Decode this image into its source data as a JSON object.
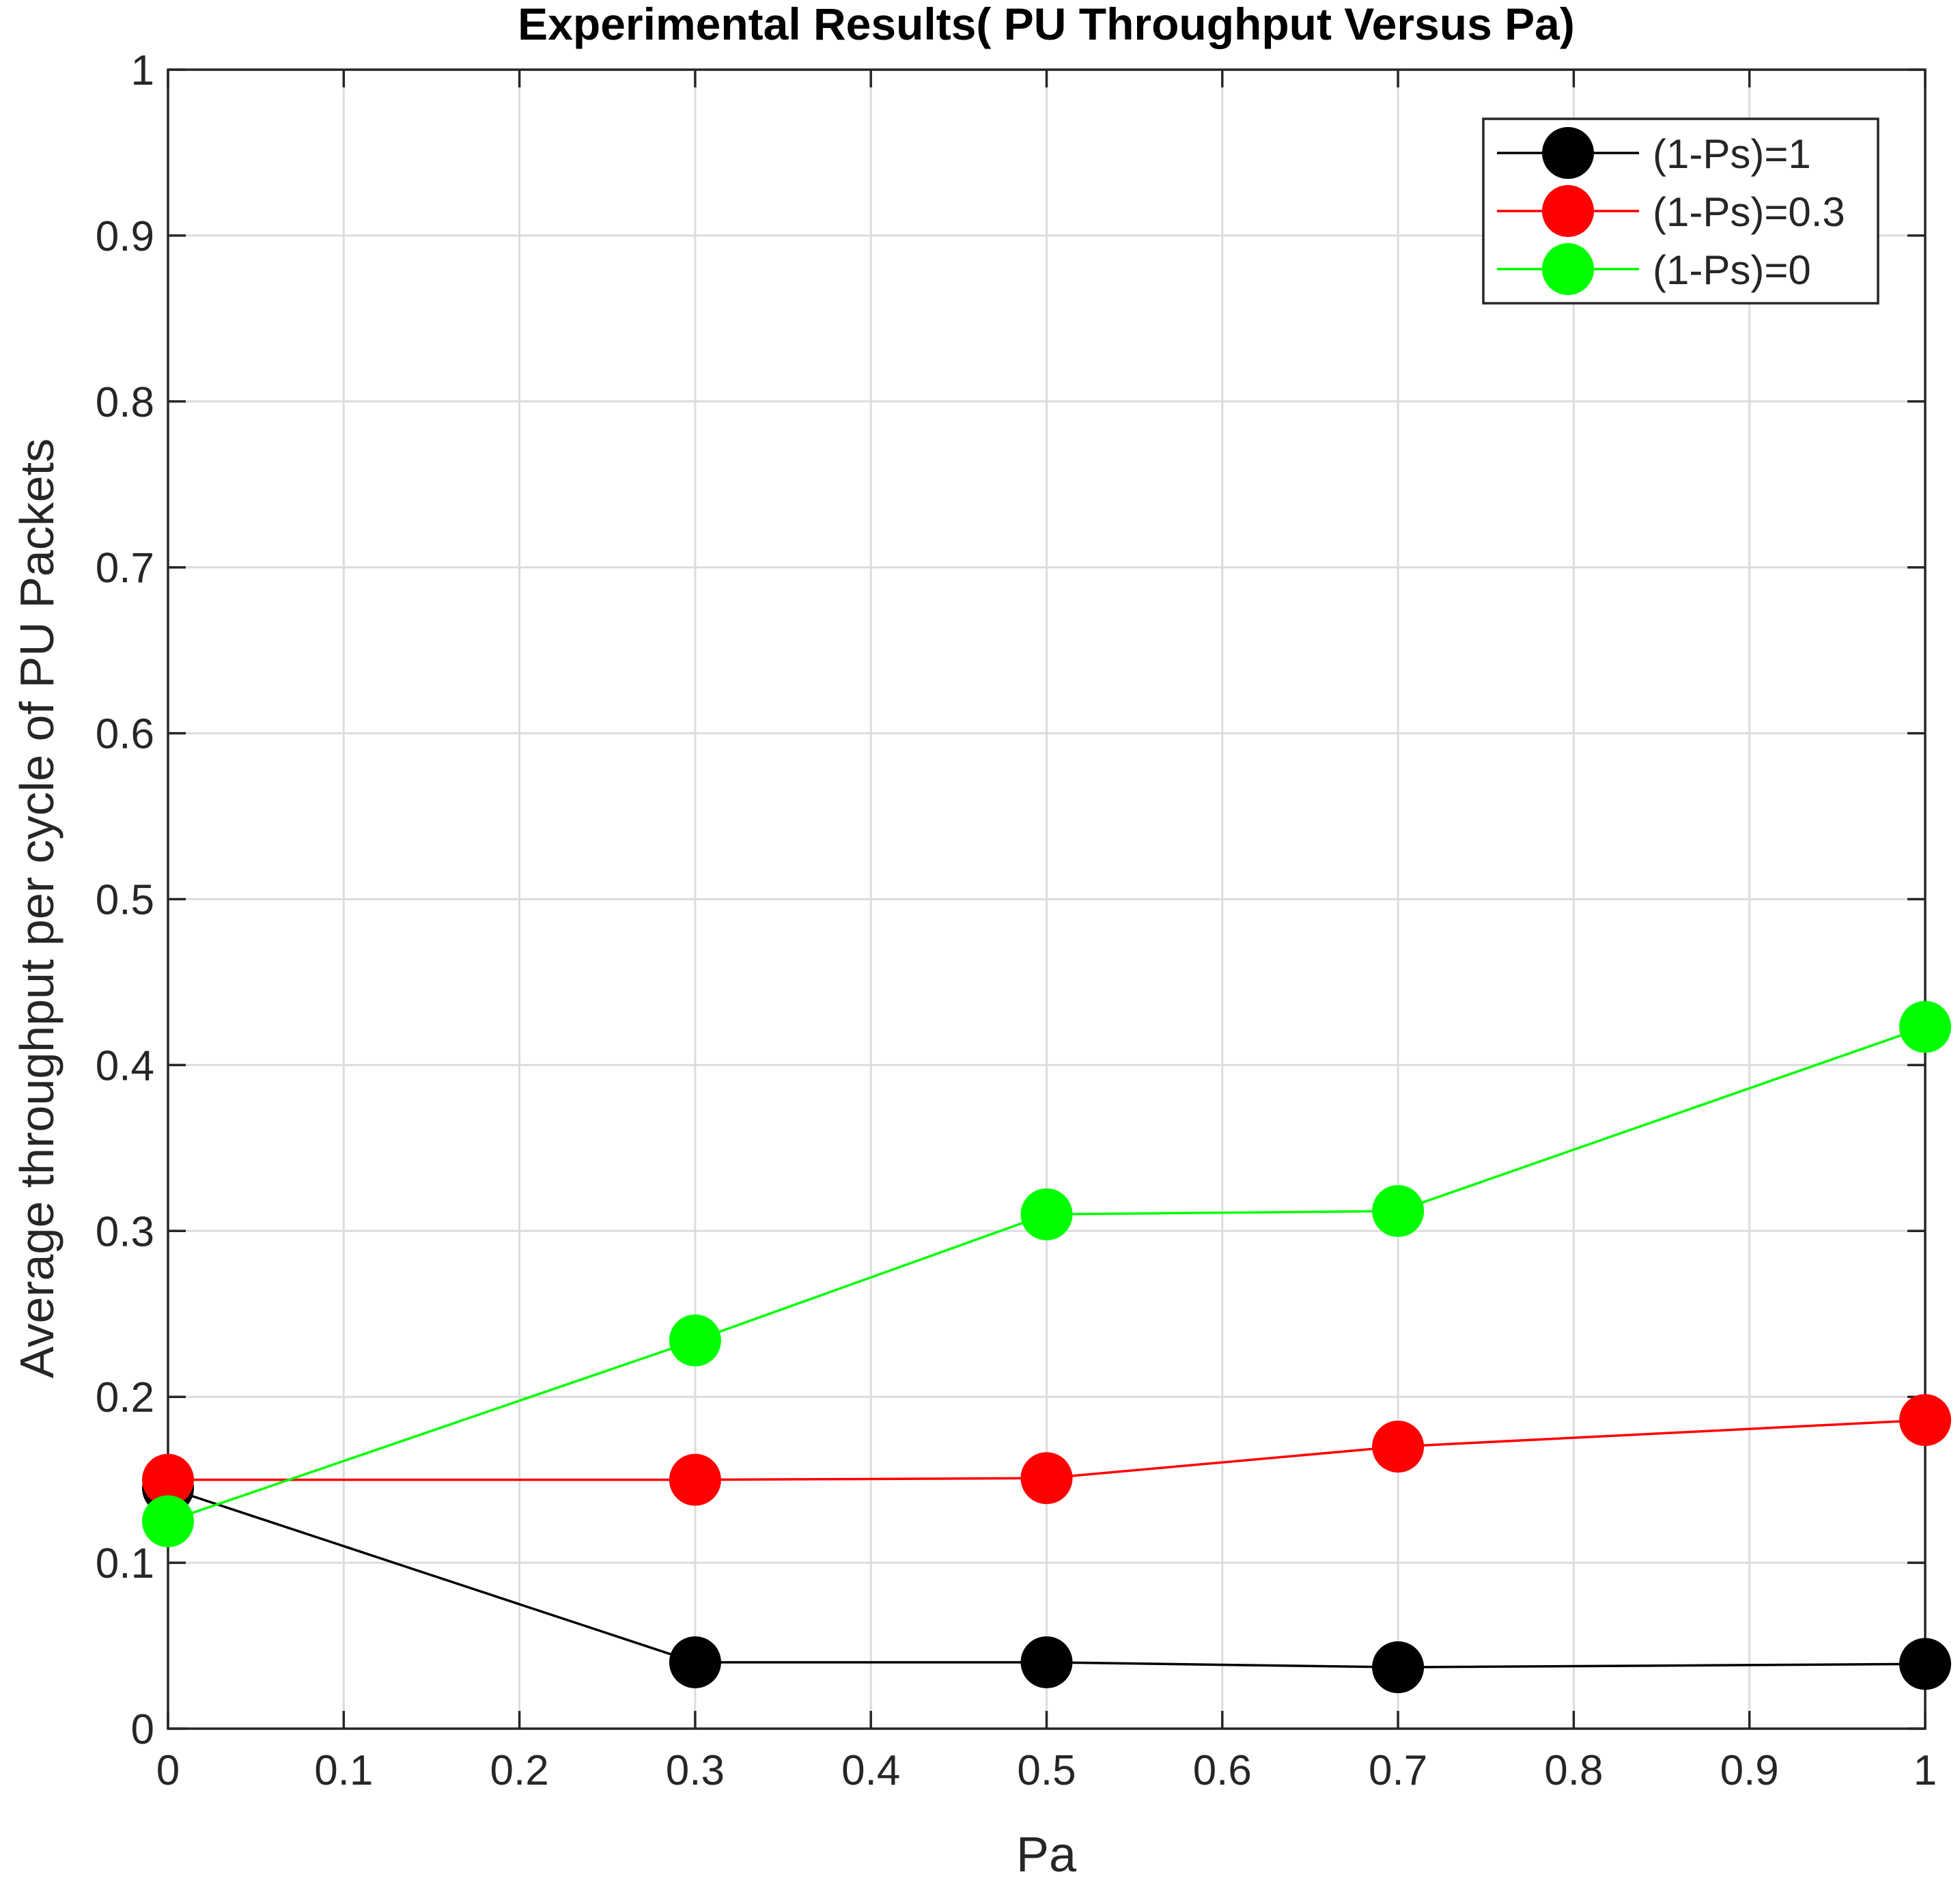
{
  "chart_data": {
    "type": "line",
    "title": "Experimental Results( PU Throughput Versus Pa)",
    "xlabel": "Pa",
    "ylabel": "Average throughput per cycle of PU Packets",
    "xlim": [
      0,
      1
    ],
    "ylim": [
      0,
      1
    ],
    "grid": true,
    "legend_position": "top-right",
    "xticks": [
      0,
      0.1,
      0.2,
      0.3,
      0.4,
      0.5,
      0.6,
      0.7,
      0.8,
      0.9,
      1
    ],
    "xtick_labels": [
      "0",
      "0.1",
      "0.2",
      "0.3",
      "0.4",
      "0.5",
      "0.6",
      "0.7",
      "0.8",
      "0.9",
      "1"
    ],
    "yticks": [
      0,
      0.1,
      0.2,
      0.3,
      0.4,
      0.5,
      0.6,
      0.7,
      0.8,
      0.9,
      1
    ],
    "ytick_labels": [
      "0",
      "0.1",
      "0.2",
      "0.3",
      "0.4",
      "0.5",
      "0.6",
      "0.7",
      "0.8",
      "0.9",
      "1"
    ],
    "x": [
      0,
      0.3,
      0.5,
      0.7,
      1
    ],
    "series": [
      {
        "name": "(1-Ps)=1",
        "color": "#000000",
        "values": [
          0.145,
          0.04,
          0.04,
          0.037,
          0.039
        ]
      },
      {
        "name": "(1-Ps)=0.3",
        "color": "#ff0000",
        "values": [
          0.15,
          0.15,
          0.151,
          0.17,
          0.186
        ]
      },
      {
        "name": "(1-Ps)=0",
        "color": "#00ff00",
        "values": [
          0.125,
          0.234,
          0.31,
          0.312,
          0.423
        ]
      }
    ]
  }
}
